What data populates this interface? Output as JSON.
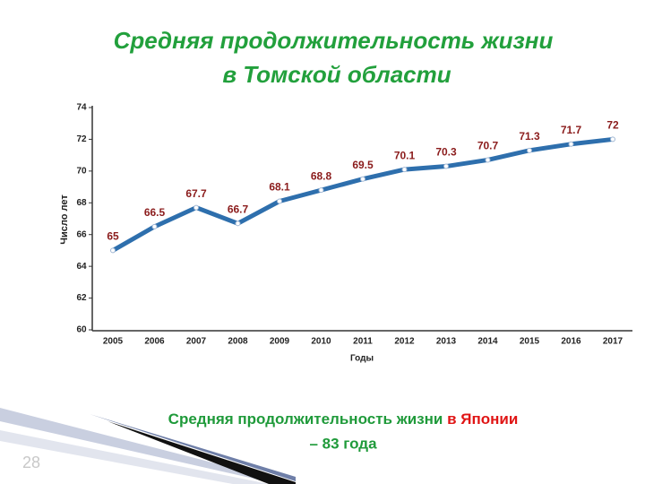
{
  "chart_data": {
    "type": "line",
    "title": [
      "Средняя продолжительность жизни",
      "в Томской области"
    ],
    "x_label": "Годы",
    "y_label": "Число лет",
    "categories": [
      "2005",
      "2006",
      "2007",
      "2008",
      "2009",
      "2010",
      "2011",
      "2012",
      "2013",
      "2014",
      "2015",
      "2016",
      "2017"
    ],
    "series": [
      {
        "name": "Средняя продолжительность жизни",
        "color": "#2e6fad",
        "values": [
          65,
          66.5,
          67.7,
          66.7,
          68.1,
          68.8,
          69.5,
          70.1,
          70.3,
          70.7,
          71.3,
          71.7,
          72
        ]
      }
    ],
    "ylim": [
      60,
      74
    ],
    "yticks": [
      60,
      62,
      64,
      66,
      68,
      70,
      72,
      74
    ],
    "grid": false
  },
  "footer": {
    "text": "Средняя продолжительность жизни ",
    "highlight": "в Японии",
    "line2": "– 83 года"
  },
  "page_number": "28"
}
